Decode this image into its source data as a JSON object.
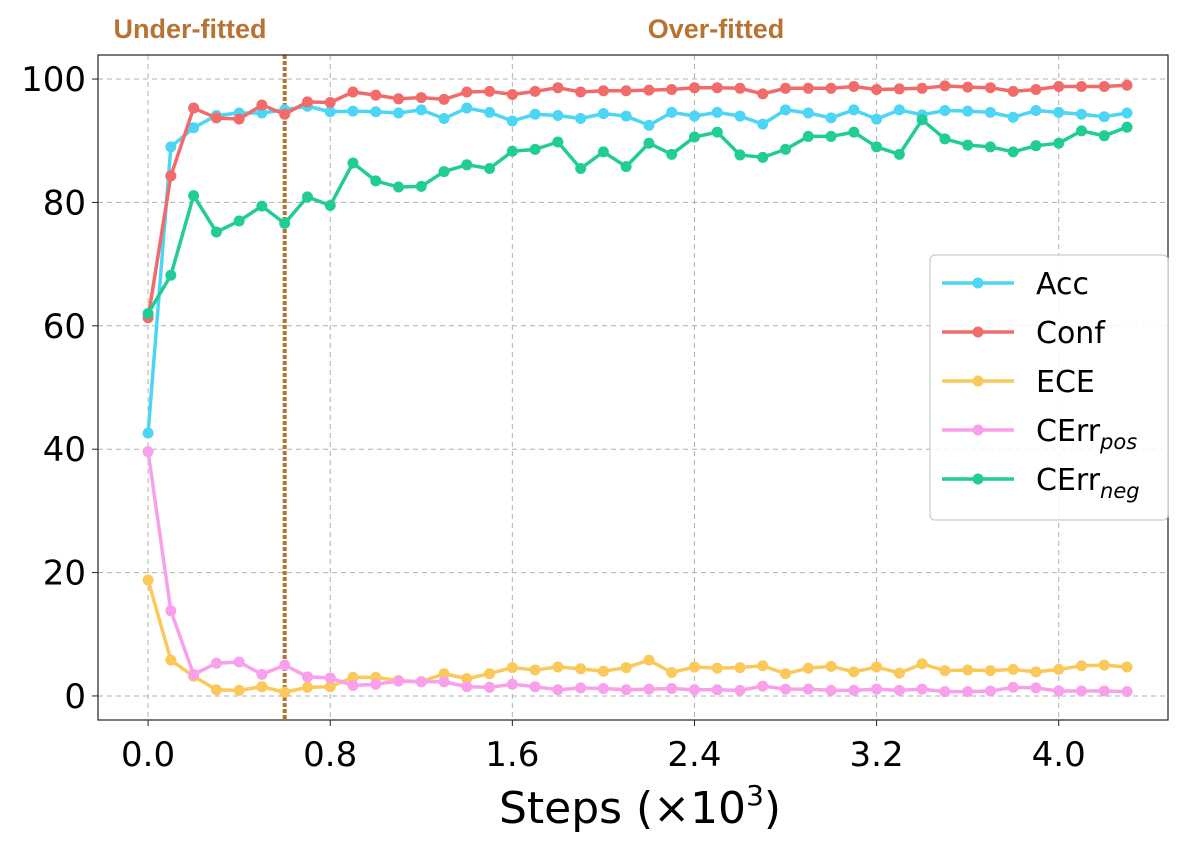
{
  "chart_data": {
    "type": "line",
    "title": "",
    "xlabel": "Steps (×10",
    "xlabel_sup": "3",
    "xlabel_close": ")",
    "ylabel": "",
    "xlim": [
      -0.22,
      4.48
    ],
    "ylim": [
      -3.9,
      103.9
    ],
    "grid": true,
    "legend_placement": "center-right",
    "x_ticks": [
      0.0,
      0.8,
      1.6,
      2.4,
      3.2,
      4.0
    ],
    "x_tick_labels": [
      "0.0",
      "0.8",
      "1.6",
      "2.4",
      "3.2",
      "4.0"
    ],
    "y_ticks": [
      0,
      20,
      40,
      60,
      80,
      100
    ],
    "y_tick_labels": [
      "0",
      "20",
      "40",
      "60",
      "80",
      "100"
    ],
    "annotations": {
      "divider_x": 0.6,
      "divider_color": "#b87333",
      "left_region": "Under-fitted",
      "right_region": "Over-fitted"
    },
    "x_start": 0.0,
    "x_step": 0.1,
    "series": [
      {
        "name": "Acc",
        "sub": "",
        "color": "#4dd5f5",
        "values": [
          42.6,
          89.0,
          92.1,
          94.1,
          94.5,
          94.5,
          95.0,
          95.6,
          94.7,
          94.8,
          94.7,
          94.5,
          95.0,
          93.6,
          95.3,
          94.6,
          93.2,
          94.3,
          94.1,
          93.6,
          94.4,
          94.0,
          92.5,
          94.6,
          94.0,
          94.6,
          94.0,
          92.7,
          95.0,
          94.5,
          93.7,
          95.0,
          93.5,
          95.0,
          94.2,
          94.9,
          94.8,
          94.6,
          93.8,
          94.9,
          94.6,
          94.3,
          93.9,
          94.5
        ]
      },
      {
        "name": "Conf",
        "sub": "",
        "color": "#f26b6b",
        "values": [
          61.3,
          84.3,
          95.3,
          93.7,
          93.5,
          95.8,
          94.3,
          96.3,
          96.2,
          97.9,
          97.4,
          96.8,
          97.0,
          96.7,
          97.9,
          98.0,
          97.5,
          98.0,
          98.6,
          97.9,
          98.1,
          98.1,
          98.2,
          98.3,
          98.6,
          98.6,
          98.5,
          97.6,
          98.5,
          98.5,
          98.5,
          98.8,
          98.3,
          98.4,
          98.5,
          98.9,
          98.7,
          98.6,
          98.0,
          98.3,
          98.8,
          98.8,
          98.8,
          99.0
        ]
      },
      {
        "name": "ECE",
        "sub": "",
        "color": "#fbc85a",
        "values": [
          18.8,
          5.8,
          3.2,
          1.0,
          0.9,
          1.5,
          0.6,
          1.4,
          1.5,
          3.0,
          3.0,
          2.5,
          2.3,
          3.6,
          2.8,
          3.6,
          4.6,
          4.2,
          4.7,
          4.4,
          4.0,
          4.6,
          5.8,
          3.8,
          4.7,
          4.5,
          4.6,
          4.9,
          3.6,
          4.5,
          4.8,
          3.9,
          4.7,
          3.7,
          5.2,
          4.1,
          4.2,
          4.1,
          4.3,
          3.9,
          4.3,
          4.9,
          5.0,
          4.7
        ]
      },
      {
        "name": "CErr",
        "sub": "pos",
        "color": "#f9a0ec",
        "values": [
          39.6,
          13.8,
          3.5,
          5.3,
          5.5,
          3.5,
          5.0,
          3.1,
          2.9,
          1.7,
          1.9,
          2.4,
          2.3,
          2.3,
          1.5,
          1.4,
          1.9,
          1.5,
          1.0,
          1.3,
          1.2,
          1.0,
          1.1,
          1.2,
          1.0,
          1.0,
          0.9,
          1.6,
          1.1,
          1.1,
          0.9,
          0.9,
          1.1,
          0.9,
          1.1,
          0.7,
          0.7,
          0.8,
          1.4,
          1.3,
          0.8,
          0.8,
          0.8,
          0.7
        ]
      },
      {
        "name": "CErr",
        "sub": "neg",
        "color": "#22cc96",
        "values": [
          62.0,
          68.2,
          81.1,
          75.2,
          77.0,
          79.4,
          76.6,
          80.9,
          79.5,
          86.4,
          83.5,
          82.5,
          82.6,
          85.0,
          86.1,
          85.5,
          88.3,
          88.6,
          89.8,
          85.5,
          88.2,
          85.8,
          89.6,
          87.8,
          90.6,
          91.4,
          87.7,
          87.3,
          88.6,
          90.7,
          90.7,
          91.4,
          89.0,
          87.8,
          93.4,
          90.3,
          89.3,
          89.0,
          88.2,
          89.2,
          89.6,
          91.6,
          90.8,
          92.2
        ]
      }
    ]
  }
}
